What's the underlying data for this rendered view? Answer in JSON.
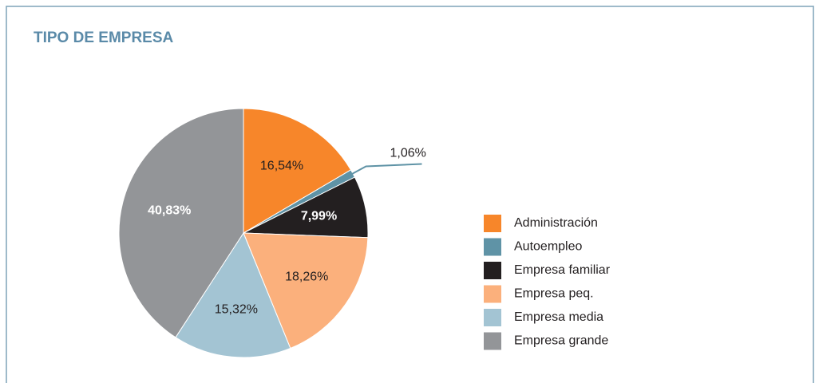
{
  "chart_data": {
    "type": "pie",
    "title": "TIPO DE EMPRESA",
    "categories": [
      "Administración",
      "Autoempleo",
      "Empresa familiar",
      "Empresa peq.",
      "Empresa media",
      "Empresa grande"
    ],
    "values": [
      16.54,
      1.06,
      7.99,
      18.26,
      15.32,
      40.83
    ],
    "value_labels": [
      "16,54%",
      "1,06%",
      "7,99%",
      "18,26%",
      "15,32%",
      "40,83%"
    ],
    "colors": [
      "#f7862a",
      "#5f93a6",
      "#231f20",
      "#fbb07c",
      "#a3c4d3",
      "#939598"
    ],
    "legend": "right"
  }
}
